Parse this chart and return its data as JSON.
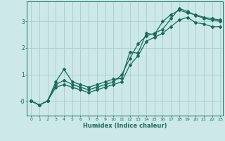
{
  "title": "",
  "xlabel": "Humidex (Indice chaleur)",
  "bg_color": "#cce8e8",
  "grid_color": "#aacccc",
  "line_color": "#1a6b5a",
  "xlim": [
    -0.5,
    23.3
  ],
  "ylim": [
    -0.55,
    3.75
  ],
  "yticks": [
    0,
    1,
    2,
    3
  ],
  "ytick_labels": [
    "-0",
    "1",
    "2",
    "3"
  ],
  "xticks": [
    0,
    1,
    2,
    3,
    4,
    5,
    6,
    7,
    8,
    9,
    10,
    11,
    12,
    13,
    14,
    15,
    16,
    17,
    18,
    19,
    20,
    21,
    22,
    23
  ],
  "series1_x": [
    0,
    1,
    2,
    3,
    4,
    5,
    6,
    7,
    8,
    9,
    10,
    11,
    12,
    13,
    14,
    15,
    16,
    17,
    18,
    19,
    20,
    21,
    22,
    23
  ],
  "series1_y": [
    0,
    -0.15,
    0,
    0.72,
    1.2,
    0.72,
    0.62,
    0.52,
    0.62,
    0.72,
    0.82,
    0.85,
    1.85,
    1.8,
    2.55,
    2.5,
    3.0,
    3.25,
    3.42,
    3.32,
    3.25,
    3.15,
    3.1,
    3.05
  ],
  "series2_x": [
    0,
    1,
    2,
    3,
    4,
    5,
    6,
    7,
    8,
    9,
    10,
    11,
    12,
    13,
    14,
    15,
    16,
    17,
    18,
    19,
    20,
    21,
    22,
    23
  ],
  "series2_y": [
    0,
    -0.15,
    0,
    0.62,
    0.78,
    0.62,
    0.52,
    0.42,
    0.52,
    0.62,
    0.72,
    0.98,
    1.6,
    2.15,
    2.45,
    2.55,
    2.7,
    3.1,
    3.48,
    3.38,
    3.22,
    3.12,
    3.05,
    3.0
  ],
  "series3_x": [
    0,
    1,
    2,
    3,
    4,
    5,
    6,
    7,
    8,
    9,
    10,
    11,
    12,
    13,
    14,
    15,
    16,
    17,
    18,
    19,
    20,
    21,
    22,
    23
  ],
  "series3_y": [
    0,
    -0.15,
    0,
    0.52,
    0.62,
    0.52,
    0.42,
    0.32,
    0.42,
    0.52,
    0.62,
    0.72,
    1.35,
    1.7,
    2.25,
    2.4,
    2.55,
    2.8,
    3.05,
    3.15,
    2.95,
    2.9,
    2.8,
    2.8
  ],
  "marker": "D",
  "markersize": 2.0,
  "linewidth": 0.9
}
